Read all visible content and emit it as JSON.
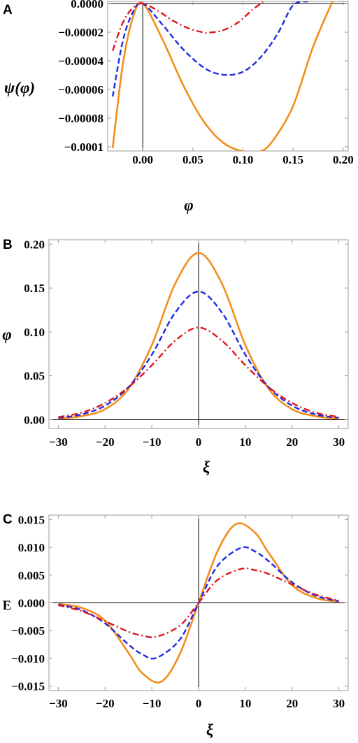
{
  "colors": {
    "orange": "#F28E1C",
    "blue": "#1F2BE0",
    "red": "#E0141E"
  },
  "chart_data": [
    {
      "panel": "A",
      "type": "line",
      "xlabel": "φ",
      "ylabel": "ψ(φ)",
      "xlim": [
        -0.035,
        0.205
      ],
      "ylim": [
        -0.000103,
        1.5e-06
      ],
      "x_ticks": [
        0.0,
        0.05,
        0.1,
        0.15,
        0.2
      ],
      "x_tick_labels": [
        "0.00",
        "0.05",
        "0.10",
        "0.15",
        "0.20"
      ],
      "y_ticks": [
        0.0,
        -2e-05,
        -4e-05,
        -6e-05,
        -8e-05,
        -0.0001
      ],
      "y_tick_labels": [
        "0.0000",
        "−0.00002",
        "−0.00004",
        "−0.00006",
        "−0.00008",
        "−0.0001"
      ],
      "series": [
        {
          "style": "solid",
          "color": "#F28E1C",
          "x": [
            -0.03,
            -0.02,
            -0.01,
            0.0,
            0.02,
            0.04,
            0.06,
            0.08,
            0.1,
            0.117,
            0.13,
            0.15,
            0.17,
            0.19
          ],
          "y": [
            -0.000101,
            -4.3e-05,
            -1.02e-05,
            0.0,
            -2.55e-05,
            -5.65e-05,
            -8.15e-05,
            -9.71e-05,
            -0.0001033,
            -0.0001035,
            -9.56e-05,
            -7.15e-05,
            -3.01e-05,
            2.5e-06
          ]
        },
        {
          "style": "dashed",
          "color": "#1F2BE0",
          "x": [
            -0.03,
            -0.02,
            -0.01,
            0.0,
            0.02,
            0.04,
            0.06,
            0.075,
            0.091,
            0.105,
            0.12,
            0.135,
            0.15,
            0.165
          ],
          "y": [
            -6.5e-05,
            -2.65e-05,
            -6.3e-06,
            0.0,
            -1.5e-05,
            -3.18e-05,
            -4.43e-05,
            -4.91e-05,
            -4.96e-05,
            -4.56e-05,
            -3.56e-05,
            -2.06e-05,
            -1.2e-06,
            1.5e-06
          ]
        },
        {
          "style": "dashdot",
          "color": "#E0141E",
          "x": [
            -0.03,
            -0.02,
            -0.01,
            0.0,
            0.015,
            0.03,
            0.045,
            0.06,
            0.066,
            0.08,
            0.095,
            0.11,
            0.12
          ],
          "y": [
            -3.3e-05,
            -1.35e-05,
            -3.1e-06,
            0.0,
            -5e-06,
            -1.19e-05,
            -1.71e-05,
            -2.01e-05,
            -2.03e-05,
            -1.87e-05,
            -1.32e-05,
            -4e-06,
            1e-06
          ]
        }
      ]
    },
    {
      "panel": "B",
      "type": "line",
      "xlabel": "ξ",
      "ylabel": "φ",
      "xlim": [
        -32,
        32
      ],
      "ylim": [
        -0.01,
        0.205
      ],
      "x_ticks": [
        -30,
        -20,
        -10,
        0,
        10,
        20,
        30
      ],
      "x_tick_labels": [
        "−30",
        "−20",
        "−10",
        "0",
        "10",
        "20",
        "30"
      ],
      "y_ticks": [
        0.0,
        0.05,
        0.1,
        0.15,
        0.2
      ],
      "y_tick_labels": [
        "0.00",
        "0.05",
        "0.10",
        "0.15",
        "0.20"
      ],
      "series": [
        {
          "style": "solid",
          "color": "#F28E1C",
          "x": [
            -30,
            -25,
            -20,
            -15,
            -10,
            -5,
            0,
            5,
            10,
            15,
            20,
            25,
            30
          ],
          "y": [
            0.001,
            0.004,
            0.012,
            0.035,
            0.085,
            0.155,
            0.19,
            0.155,
            0.085,
            0.035,
            0.012,
            0.004,
            0.001
          ]
        },
        {
          "style": "dashed",
          "color": "#1F2BE0",
          "x": [
            -30,
            -25,
            -20,
            -15,
            -10,
            -5,
            0,
            5,
            10,
            15,
            20,
            25,
            30
          ],
          "y": [
            0.002,
            0.006,
            0.016,
            0.037,
            0.074,
            0.122,
            0.146,
            0.122,
            0.074,
            0.037,
            0.016,
            0.006,
            0.002
          ]
        },
        {
          "style": "dashdot",
          "color": "#E0141E",
          "x": [
            -30,
            -25,
            -20,
            -15,
            -10,
            -5,
            0,
            5,
            10,
            15,
            20,
            25,
            30
          ],
          "y": [
            0.003,
            0.008,
            0.019,
            0.037,
            0.062,
            0.09,
            0.105,
            0.09,
            0.062,
            0.037,
            0.019,
            0.008,
            0.003
          ]
        }
      ]
    },
    {
      "panel": "C",
      "type": "line",
      "xlabel": "ξ",
      "ylabel": "E",
      "xlim": [
        -32,
        32
      ],
      "ylim": [
        -0.0158,
        0.0158
      ],
      "x_ticks": [
        -30,
        -20,
        -10,
        0,
        10,
        20,
        30
      ],
      "x_tick_labels": [
        "−30",
        "−20",
        "−10",
        "0",
        "10",
        "20",
        "30"
      ],
      "y_ticks": [
        0.015,
        0.01,
        0.005,
        0.0,
        -0.005,
        -0.01,
        -0.015
      ],
      "y_tick_labels": [
        "0.015",
        "0.010",
        "0.005",
        "0.000",
        "−0.005",
        "−0.010",
        "−0.015"
      ],
      "series": [
        {
          "style": "solid",
          "color": "#F28E1C",
          "x": [
            -30,
            -25,
            -20,
            -15,
            -12,
            -8,
            -4,
            0,
            4,
            8,
            12,
            15,
            20,
            25,
            30
          ],
          "y": [
            -0.0002,
            -0.0009,
            -0.0032,
            -0.009,
            -0.0127,
            -0.0142,
            -0.0092,
            0.0,
            0.0092,
            0.0142,
            0.0127,
            0.009,
            0.0032,
            0.0009,
            0.0002
          ]
        },
        {
          "style": "dashed",
          "color": "#1F2BE0",
          "x": [
            -30,
            -25,
            -20,
            -15,
            -12,
            -9,
            -4,
            0,
            4,
            9,
            12,
            15,
            20,
            25,
            30
          ],
          "y": [
            -0.0003,
            -0.0013,
            -0.0037,
            -0.0075,
            -0.0093,
            -0.0099,
            -0.0066,
            0.0,
            0.0066,
            0.0099,
            0.0093,
            0.0075,
            0.0037,
            0.0013,
            0.0003
          ]
        },
        {
          "style": "dashdot",
          "color": "#E0141E",
          "x": [
            -30,
            -25,
            -20,
            -15,
            -12,
            -9,
            -4,
            0,
            4,
            9,
            12,
            15,
            20,
            25,
            30
          ],
          "y": [
            -0.0004,
            -0.0015,
            -0.0033,
            -0.0052,
            -0.0059,
            -0.0061,
            -0.0041,
            0.0,
            0.0041,
            0.0061,
            0.0059,
            0.0052,
            0.0033,
            0.0015,
            0.0004
          ]
        }
      ]
    }
  ]
}
